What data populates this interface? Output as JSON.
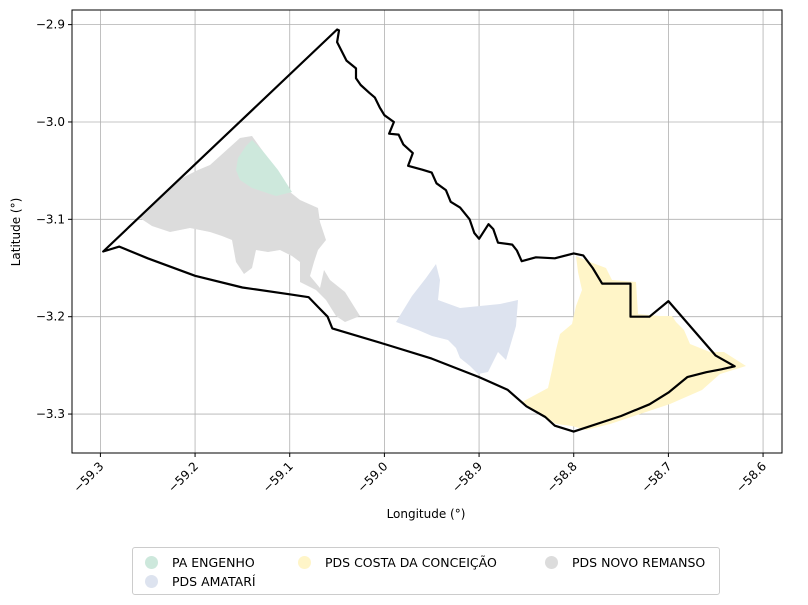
{
  "chart_data": {
    "type": "map",
    "xlabel": "Longitude (°)",
    "ylabel": "Latitude (°)",
    "xlim": [
      -59.33,
      -58.58
    ],
    "ylim": [
      -3.34,
      -2.885
    ],
    "x_ticks": [
      -59.3,
      -59.2,
      -59.1,
      -59.0,
      -58.9,
      -58.8,
      -58.7,
      -58.6
    ],
    "x_tick_labels": [
      "−59.3",
      "−59.2",
      "−59.1",
      "−59.0",
      "−58.9",
      "−58.8",
      "−58.7",
      "−58.6"
    ],
    "y_ticks": [
      -2.9,
      -3.0,
      -3.1,
      -3.2,
      -3.3
    ],
    "y_tick_labels": [
      "−2.9",
      "−3.0",
      "−3.1",
      "−3.2",
      "−3.3"
    ],
    "grid": true,
    "legend_position": "bottom-center",
    "series": [
      {
        "name": "PA ENGENHO",
        "color": "#cde8dc"
      },
      {
        "name": "PDS AMATARÍ",
        "color": "#dde3ef"
      },
      {
        "name": "PDS COSTA DA CONCEIÇÃO",
        "color": "#fff5c8"
      },
      {
        "name": "PDS NOVO REMANSO",
        "color": "#dcdcdc"
      }
    ],
    "boundary": [
      [
        -59.297,
        -3.133
      ],
      [
        -59.28,
        -3.128
      ],
      [
        -59.25,
        -3.14
      ],
      [
        -59.2,
        -3.158
      ],
      [
        -59.15,
        -3.17
      ],
      [
        -59.1,
        -3.177
      ],
      [
        -59.08,
        -3.18
      ],
      [
        -59.07,
        -3.19
      ],
      [
        -59.06,
        -3.2
      ],
      [
        -59.055,
        -3.212
      ],
      [
        -59.0,
        -3.228
      ],
      [
        -58.95,
        -3.243
      ],
      [
        -58.9,
        -3.262
      ],
      [
        -58.87,
        -3.275
      ],
      [
        -58.85,
        -3.292
      ],
      [
        -58.83,
        -3.303
      ],
      [
        -58.82,
        -3.312
      ],
      [
        -58.8,
        -3.318
      ],
      [
        -58.75,
        -3.302
      ],
      [
        -58.72,
        -3.29
      ],
      [
        -58.7,
        -3.278
      ],
      [
        -58.68,
        -3.262
      ],
      [
        -58.66,
        -3.257
      ],
      [
        -58.644,
        -3.254
      ],
      [
        -58.63,
        -3.251
      ],
      [
        -58.65,
        -3.24
      ],
      [
        -58.7,
        -3.184
      ],
      [
        -58.72,
        -3.2
      ],
      [
        -58.74,
        -3.2
      ],
      [
        -58.74,
        -3.166
      ],
      [
        -58.77,
        -3.166
      ],
      [
        -58.78,
        -3.15
      ],
      [
        -58.79,
        -3.137
      ],
      [
        -58.8,
        -3.135
      ],
      [
        -58.82,
        -3.14
      ],
      [
        -58.84,
        -3.139
      ],
      [
        -58.855,
        -3.143
      ],
      [
        -58.86,
        -3.132
      ],
      [
        -58.865,
        -3.126
      ],
      [
        -58.88,
        -3.124
      ],
      [
        -58.885,
        -3.11
      ],
      [
        -58.89,
        -3.105
      ],
      [
        -58.9,
        -3.12
      ],
      [
        -58.905,
        -3.114
      ],
      [
        -58.91,
        -3.1
      ],
      [
        -58.92,
        -3.088
      ],
      [
        -58.93,
        -3.082
      ],
      [
        -58.935,
        -3.07
      ],
      [
        -58.945,
        -3.063
      ],
      [
        -58.95,
        -3.052
      ],
      [
        -58.96,
        -3.049
      ],
      [
        -58.975,
        -3.045
      ],
      [
        -58.97,
        -3.032
      ],
      [
        -58.98,
        -3.023
      ],
      [
        -58.985,
        -3.013
      ],
      [
        -58.995,
        -3.012
      ],
      [
        -58.99,
        -3.0
      ],
      [
        -59.0,
        -2.993
      ],
      [
        -59.005,
        -2.985
      ],
      [
        -59.01,
        -2.975
      ],
      [
        -59.016,
        -2.97
      ],
      [
        -59.025,
        -2.962
      ],
      [
        -59.03,
        -2.955
      ],
      [
        -59.03,
        -2.945
      ],
      [
        -59.04,
        -2.937
      ],
      [
        -59.05,
        -2.918
      ],
      [
        -59.048,
        -2.906
      ],
      [
        -59.05,
        -2.905
      ]
    ]
  },
  "legend": {
    "items": [
      "PA ENGENHO",
      "PDS AMATARÍ",
      "PDS COSTA DA CONCEIÇÃO",
      "PDS NOVO REMANSO"
    ]
  }
}
